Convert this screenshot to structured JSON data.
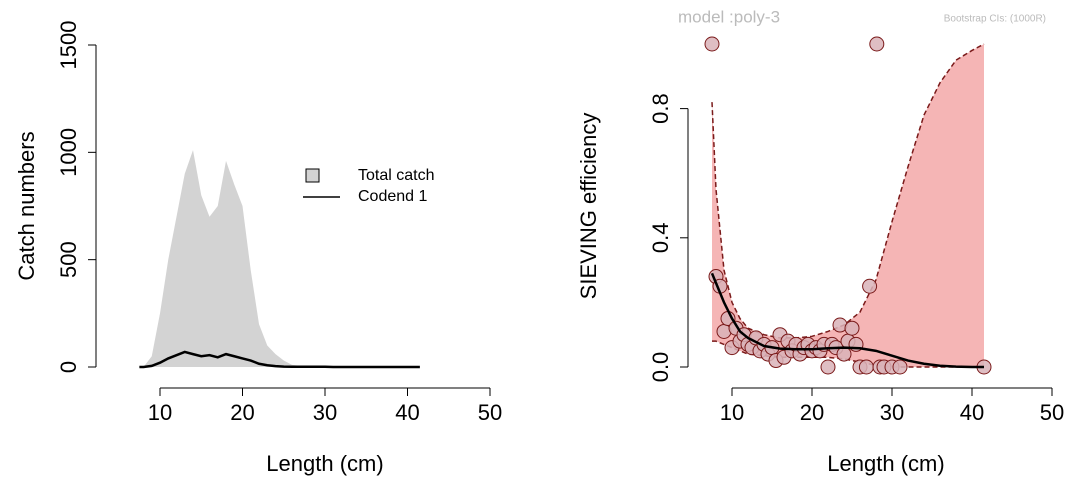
{
  "chart_data": [
    {
      "type": "area",
      "xlabel": "Length (cm)",
      "ylabel": "Catch numbers",
      "x": [
        7.5,
        8,
        9,
        10,
        11,
        12,
        13,
        14,
        15,
        16,
        17,
        18,
        19,
        20,
        21,
        22,
        23,
        24,
        25,
        26,
        27,
        28,
        29,
        30,
        31,
        32,
        33,
        34,
        35,
        36,
        37,
        38,
        39,
        40,
        41,
        41.5
      ],
      "series": [
        {
          "name": "Total catch",
          "kind": "area",
          "color": "#d3d3d3",
          "values": [
            0,
            0,
            50,
            250,
            500,
            700,
            900,
            1010,
            800,
            700,
            750,
            960,
            850,
            750,
            450,
            200,
            100,
            60,
            30,
            10,
            5,
            5,
            3,
            3,
            2,
            2,
            1,
            1,
            1,
            1,
            1,
            1,
            1,
            0,
            0,
            0
          ]
        },
        {
          "name": "Codend 1",
          "kind": "line",
          "color": "#000000",
          "values": [
            0,
            0,
            5,
            20,
            40,
            55,
            70,
            60,
            50,
            55,
            45,
            60,
            50,
            40,
            30,
            15,
            8,
            4,
            2,
            1,
            1,
            1,
            1,
            1,
            0,
            0,
            0,
            0,
            0,
            0,
            0,
            0,
            0,
            0,
            0,
            0
          ]
        }
      ],
      "xlim": [
        10,
        50
      ],
      "xticks": [
        10,
        20,
        30,
        40,
        50
      ],
      "ylim": [
        0,
        1500
      ],
      "yticks": [
        0,
        500,
        1000,
        1500
      ],
      "legend": "right"
    },
    {
      "type": "scatter",
      "title": "model :poly-3",
      "subtitle": "Bootstrap CIs: (1000R)",
      "xlabel": "Length (cm)",
      "ylabel": "SIEVING efficiency",
      "points": {
        "color": "#d9b3b8",
        "edge": "#7a1a1a",
        "x": [
          7.5,
          8,
          8.5,
          9,
          9.5,
          10,
          10.5,
          11,
          11.5,
          12,
          12.5,
          13,
          13.5,
          14,
          14.5,
          15,
          15.5,
          16,
          16.5,
          17,
          17.5,
          18,
          18.5,
          19,
          19.5,
          20,
          20.5,
          21,
          21.5,
          22,
          22.5,
          23,
          23.5,
          24,
          24.5,
          25,
          25.5,
          26,
          27.2,
          26.8,
          28.1,
          28.5,
          29,
          30,
          31,
          41.5
        ],
        "y": [
          1.0,
          0.28,
          0.25,
          0.11,
          0.15,
          0.06,
          0.12,
          0.08,
          0.1,
          0.07,
          0.06,
          0.09,
          0.05,
          0.07,
          0.04,
          0.06,
          0.02,
          0.1,
          0.03,
          0.08,
          0.05,
          0.07,
          0.04,
          0.06,
          0.07,
          0.05,
          0.06,
          0.05,
          0.07,
          0.0,
          0.07,
          0.06,
          0.13,
          0.04,
          0.08,
          0.12,
          0.07,
          0.0,
          0.25,
          0.0,
          1.0,
          0.0,
          0.0,
          0.0,
          0.0,
          0.0
        ]
      },
      "fit": {
        "color": "#000000",
        "band": "#f5b5b5",
        "band_edge": "#7a1a1a",
        "x": [
          7.5,
          8,
          9,
          10,
          11,
          12,
          14,
          16,
          18,
          20,
          22,
          24,
          26,
          28,
          30,
          32,
          34,
          36,
          38,
          40,
          41.5
        ],
        "values": [
          0.29,
          0.26,
          0.2,
          0.15,
          0.11,
          0.09,
          0.065,
          0.057,
          0.055,
          0.055,
          0.058,
          0.06,
          0.058,
          0.05,
          0.035,
          0.02,
          0.01,
          0.004,
          0.001,
          0,
          0
        ],
        "upper": [
          0.82,
          0.55,
          0.3,
          0.2,
          0.15,
          0.12,
          0.1,
          0.09,
          0.09,
          0.095,
          0.11,
          0.13,
          0.17,
          0.27,
          0.45,
          0.62,
          0.78,
          0.88,
          0.95,
          0.98,
          1.0
        ],
        "lower": [
          0.08,
          0.08,
          0.07,
          0.06,
          0.05,
          0.04,
          0.035,
          0.03,
          0.03,
          0.03,
          0.03,
          0.025,
          0.015,
          0.005,
          0,
          0,
          0,
          0,
          0,
          0,
          0
        ]
      },
      "xlim": [
        10,
        50
      ],
      "xticks": [
        10,
        20,
        30,
        40,
        50
      ],
      "ylim": [
        0,
        1
      ],
      "yticks": [
        {
          "value": 0,
          "label": "0.0"
        },
        0.4,
        0.8
      ]
    }
  ]
}
